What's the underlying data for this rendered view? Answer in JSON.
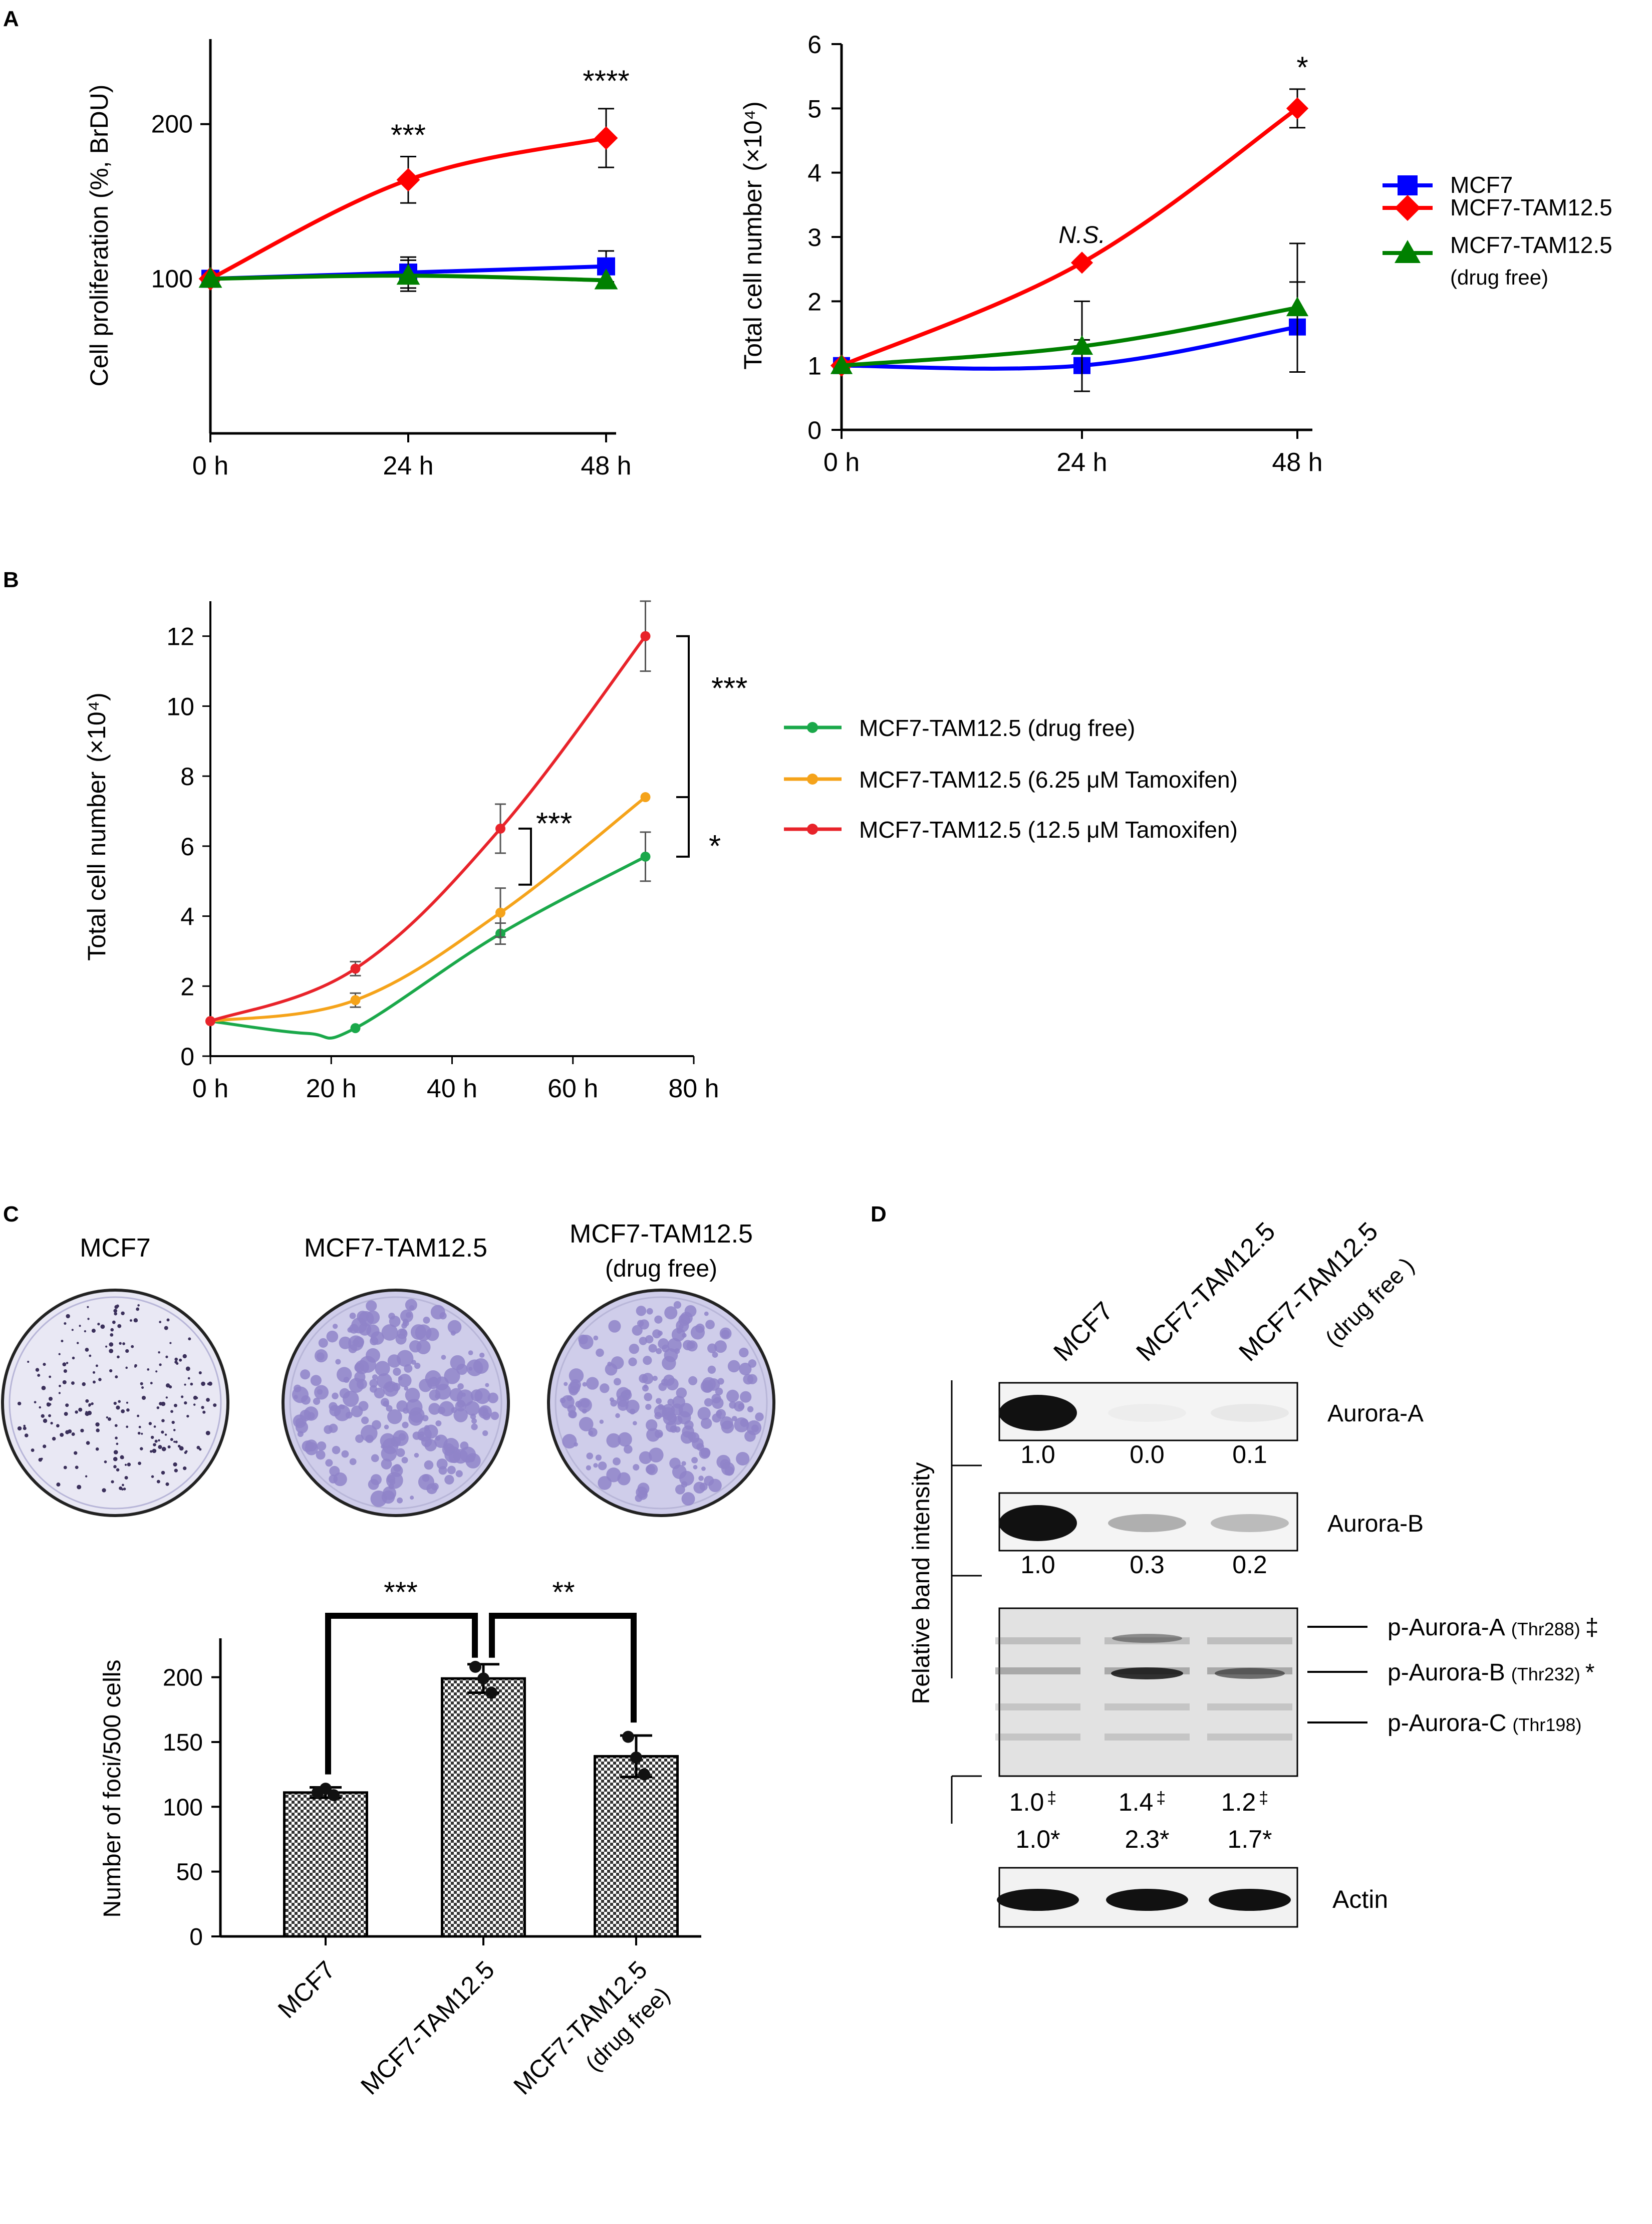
{
  "chart_data": [
    {
      "panel": "A",
      "type": "line",
      "title": "",
      "ylabel": "Cell proliferation (%, BrDU)",
      "xlabel": "",
      "categories": [
        "0 h",
        "24 h",
        "48 h"
      ],
      "y_ticks": [
        "100",
        "200"
      ],
      "ylim": [
        0,
        255
      ],
      "series": [
        {
          "name": "MCF7",
          "values": [
            100,
            104,
            108
          ],
          "err": [
            0,
            10,
            10
          ],
          "color": "#0000ff",
          "marker": "square"
        },
        {
          "name": "MCF7-TAM12.5",
          "values": [
            100,
            164,
            191
          ],
          "err": [
            0,
            15,
            19
          ],
          "color": "#ff0000",
          "marker": "diamond"
        },
        {
          "name": "MCF7-TAM12.5 (drug free)",
          "values": [
            100,
            102,
            99
          ],
          "err": [
            0,
            10,
            0
          ],
          "color": "#008000",
          "marker": "triangle"
        }
      ],
      "annotations": [
        "***",
        "****"
      ]
    },
    {
      "panel": "A",
      "type": "line",
      "title": "",
      "ylabel": "Total cell number",
      "ylabel_unit": "(×10⁴)",
      "categories": [
        "0 h",
        "24 h",
        "48 h"
      ],
      "y_ticks": [
        "0",
        "1",
        "2",
        "3",
        "4",
        "5",
        "6"
      ],
      "ylim": [
        0,
        6
      ],
      "series": [
        {
          "name": "MCF7",
          "values": [
            1.0,
            1.0,
            1.6
          ],
          "err": [
            0,
            0.4,
            0.7
          ],
          "color": "#0000ff",
          "marker": "square"
        },
        {
          "name": "MCF7-TAM12.5",
          "values": [
            1.0,
            2.6,
            5.0
          ],
          "err": [
            0,
            0,
            0.3
          ],
          "color": "#ff0000",
          "marker": "diamond"
        },
        {
          "name": "MCF7-TAM12.5 (drug free)",
          "values": [
            1.0,
            1.3,
            1.9
          ],
          "err": [
            0,
            0.7,
            1.0
          ],
          "color": "#008000",
          "marker": "triangle"
        }
      ],
      "annotations": [
        "N.S.",
        "*"
      ],
      "legend": [
        "MCF7",
        "MCF7-TAM12.5",
        "MCF7-TAM12.5",
        "(drug free)"
      ]
    },
    {
      "panel": "B",
      "type": "line",
      "title": "",
      "ylabel": "Total cell number",
      "ylabel_unit": "(×10⁴)",
      "x_ticks": [
        "0 h",
        "20 h",
        "40 h",
        "60 h",
        "80 h"
      ],
      "x_values": [
        0,
        24,
        48,
        72
      ],
      "y_ticks": [
        "0",
        "2",
        "4",
        "6",
        "8",
        "10",
        "12"
      ],
      "xlim": [
        0,
        80
      ],
      "ylim": [
        0,
        13
      ],
      "series": [
        {
          "name": "MCF7-TAM12.5 (drug free)",
          "values": [
            1.0,
            0.8,
            3.5,
            5.7
          ],
          "err": [
            0,
            0,
            0.3,
            0.7
          ],
          "color": "#1aa84a"
        },
        {
          "name": "MCF7-TAM12.5 (6.25 μM Tamoxifen)",
          "values": [
            1.0,
            1.6,
            4.1,
            7.4
          ],
          "err": [
            0,
            0.2,
            0.7,
            0
          ],
          "color": "#f5a31a"
        },
        {
          "name": "MCF7-TAM12.5 (12.5 μM Tamoxifen)",
          "values": [
            1.0,
            2.5,
            6.5,
            12.0
          ],
          "err": [
            0,
            0.2,
            0.7,
            1.0
          ],
          "color": "#e8232a"
        }
      ],
      "annotations": [
        "***",
        "***",
        "*"
      ]
    },
    {
      "panel": "C",
      "type": "bar",
      "title": "",
      "ylabel": "Number of  foci/500 cells",
      "categories": [
        "MCF7",
        "MCF7-TAM12.5",
        "MCF7-TAM12.5"
      ],
      "category_sublabels": [
        "",
        "",
        "(drug free)"
      ],
      "values": [
        111,
        199,
        139
      ],
      "err": [
        4,
        11,
        16
      ],
      "points": [
        [
          111,
          114,
          109
        ],
        [
          208,
          199,
          188
        ],
        [
          154,
          138,
          125
        ]
      ],
      "y_ticks": [
        "0",
        "50",
        "100",
        "150",
        "200"
      ],
      "ylim": [
        0,
        230
      ],
      "annotations": [
        "***",
        "**"
      ],
      "plate_labels": [
        "MCF7",
        "MCF7-TAM12.5",
        "MCF7-TAM12.5",
        "(drug free)"
      ]
    }
  ],
  "panel_labels": [
    "A",
    "B",
    "C",
    "D"
  ],
  "western_blot": {
    "lanes": [
      "MCF7",
      "MCF7-TAM12.5",
      "MCF7-TAM12.5",
      "(drug free )"
    ],
    "side_label": "Relative band intensity",
    "rows": [
      {
        "name": "Aurora-A",
        "values": [
          "1.0",
          "0.0",
          "0.1"
        ],
        "intensity": [
          1.0,
          0.02,
          0.05
        ]
      },
      {
        "name": "Aurora-B",
        "values": [
          "1.0",
          "0.3",
          "0.2"
        ],
        "intensity": [
          1.0,
          0.3,
          0.25
        ]
      }
    ],
    "phospho_labels": [
      {
        "main": "p-Aurora-A",
        "site": "(Thr288)",
        "mark": "‡"
      },
      {
        "main": "p-Aurora-B",
        "site": "(Thr232)",
        "mark": "*"
      },
      {
        "main": "p-Aurora-C",
        "site": "(Thr198)",
        "mark": ""
      }
    ],
    "phospho_values_a": [
      "1.0",
      "1.4",
      "1.2"
    ],
    "phospho_values_b": [
      "1.0*",
      "2.3*",
      "1.7*"
    ],
    "dagger": "‡",
    "actin_label": "Actin"
  }
}
